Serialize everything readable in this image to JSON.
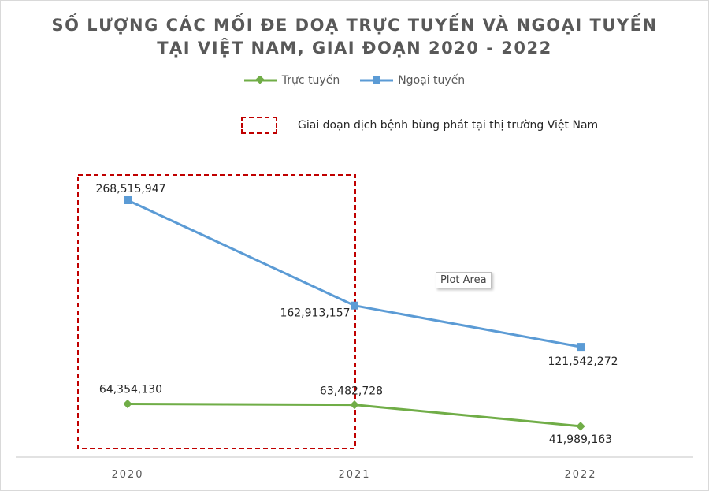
{
  "chart_data": {
    "type": "line",
    "title": "SỐ LƯỢNG CÁC MỐI ĐE DOẠ TRỰC TUYẾN VÀ NGOẠI TUYẾN TẠI VIỆT NAM, GIAI ĐOẠN 2020 - 2022",
    "title_lines": [
      "SỐ LƯỢNG CÁC MỐI ĐE DOẠ TRỰC TUYẾN VÀ NGOẠI TUYẾN",
      "TẠI VIỆT NAM, GIAI ĐOẠN 2020 - 2022"
    ],
    "categories": [
      "2020",
      "2021",
      "2022"
    ],
    "series": [
      {
        "name": "Trực tuyến",
        "values": [
          64354130,
          63482728,
          41989163
        ],
        "labels": [
          "64,354,130",
          "63,482,728",
          "41,989,163"
        ],
        "color": "#70ad47",
        "marker": "diamond"
      },
      {
        "name": "Ngoại tuyến",
        "values": [
          268515947,
          162913157,
          121542272
        ],
        "labels": [
          "268,515,947",
          "162,913,157",
          "121,542,272"
        ],
        "color": "#5b9bd5",
        "marker": "square"
      }
    ],
    "ylim": [
      0,
      300000000
    ],
    "grid": false,
    "legend_position": "top",
    "annotation": {
      "text": "Giai đoạn dịch bệnh bùng phát tại thị trường Việt Nam",
      "color": "#c00000",
      "covers_categories": [
        "2020",
        "2021"
      ]
    }
  },
  "ui": {
    "tooltip": "Plot Area"
  }
}
